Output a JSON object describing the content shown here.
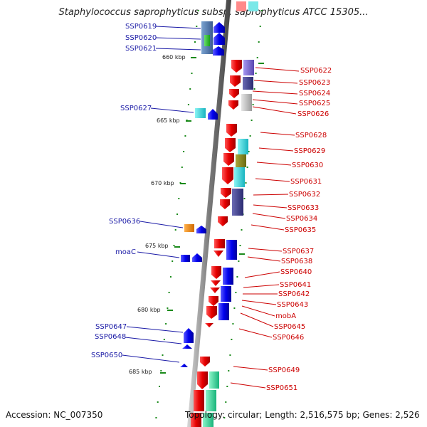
{
  "title": "Staphylococcus saprophyticus subsp. saprophyticus ATCC 15305...",
  "footer": {
    "accession": "Accession: NC_007350",
    "summary": "Topology: circular; Length: 2,516,575 bp; Genes: 2,526"
  },
  "scale_labels": [
    "660 kbp",
    "665 kbp",
    "670 kbp",
    "675 kbp",
    "680 kbp",
    "685 kbp"
  ],
  "left_genes": [
    "SSP0619",
    "SSP0620",
    "SSP0621",
    "SSP0627",
    "SSP0636",
    "moaC",
    "SSP0647",
    "SSP0648",
    "SSP0650"
  ],
  "right_genes": [
    "SSP0622",
    "SSP0623",
    "SSP0624",
    "SSP0625",
    "SSP0626",
    "SSP0628",
    "SSP0629",
    "SSP0630",
    "SSP0631",
    "SSP0632",
    "SSP0633",
    "SSP0634",
    "SSP0635",
    "SSP0637",
    "SSP0638",
    "SSP0640",
    "SSP0641",
    "SSP0642",
    "SSP0643",
    "mobA",
    "SSP0645",
    "SSP0646",
    "SSP0649",
    "SSP0651"
  ],
  "colors": {
    "backbone": "#8a8a8a",
    "reverse_strand_gene": "#0a14e6",
    "forward_strand_gene": "#e61414",
    "tick": "#1a8a1a",
    "left_label": "#1a1aa6",
    "right_label": "#cc0000"
  }
}
